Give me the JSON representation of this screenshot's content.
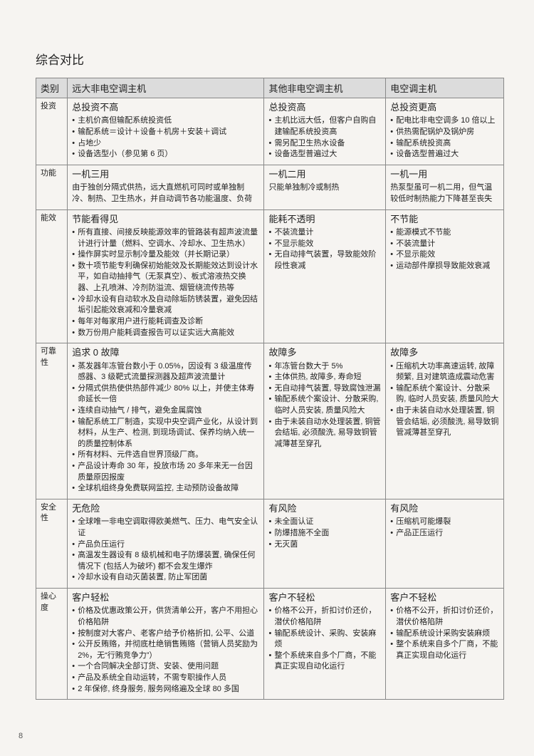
{
  "page_number": "8",
  "title": "综合对比",
  "header": {
    "col_cat": "类别",
    "col_main": "远大非电空调主机",
    "col_other": "其他非电空调主机",
    "col_elec": "电空调主机"
  },
  "rows": {
    "invest": {
      "cat": "投资",
      "main_lead": "总投资不高",
      "main_bullets": [
        "主机价高但输配系统投资低",
        "输配系统＝设计＋设备＋机房＋安装＋调试",
        "占地少",
        "设备选型小（参见第 6 页）"
      ],
      "other_lead": "总投资高",
      "other_bullets": [
        "主机比远大低，但客户自购自建输配系统投资高",
        "需另配卫生热水设备",
        "设备选型普遍过大"
      ],
      "elec_lead": "总投资更高",
      "elec_bullets": [
        "配电比非电空调多 10 倍以上",
        "供热需配锅炉及锅炉房",
        "输配系统投资高",
        "设备选型普遍过大"
      ]
    },
    "func": {
      "cat": "功能",
      "main_lead": "一机三用",
      "main_sub": "由于独创分隔式供热，远大直燃机可同时或单独制冷、制热、卫生热水，并自动调节各功能温度、负荷",
      "other_lead": "一机二用",
      "other_sub": "只能单独制冷或制热",
      "elec_lead": "一机一用",
      "elec_sub": "热泵型虽可一机二用，但气温较低时制热能力下降甚至丧失"
    },
    "energy": {
      "cat": "能效",
      "main_lead": "节能看得见",
      "main_bullets": [
        "所有直接、间接反映能源效率的管路装有超声波流量计进行计量（燃料、空调水、冷却水、卫生热水）",
        "操作屏实时显示制冷量及能效（并长期记录）",
        "数十项节能专利确保初始能效及长期能效达到设计水平，如自动抽排气（无泵真空）、板式溶液热交换器、上孔喷淋、冷剂防溢流、烟管绕流传热等",
        "冷却水设有自动软水及自动除垢防锈装置，避免因结垢引起能效衰减和冷量衰减",
        "每年对每家用户进行能耗调查及诊断",
        "数万份用户能耗调查报告可以证实远大高能效"
      ],
      "other_lead": "能耗不透明",
      "other_bullets": [
        "不装流量计",
        "不显示能效",
        "无自动排气装置，导致能效阶段性衰减"
      ],
      "elec_lead": "不节能",
      "elec_bullets": [
        "能源模式不节能",
        "不装流量计",
        "不显示能效",
        "运动部件摩损导致能效衰减"
      ]
    },
    "reliab": {
      "cat": "可靠性",
      "main_lead": "追求 0 故障",
      "main_bullets": [
        "蒸发器年冻管台数小于 0.05%，因设有 3 级温度传感器、3 级靶式流量探测器及超声波流量计",
        "分隔式供热使供热部件减少 80% 以上，并使主体寿命延长一倍",
        "连续自动抽气 / 排气，避免金属腐蚀",
        "输配系统工厂制造，实现中央空调产业化，从设计到材料，从生产、检测, 到现场调试、保养均纳入统一的质量控制体系",
        "所有材料、元件选自世界顶级厂商。",
        "产品设计寿命 30 年，投放市场 20 多年来无一台因质量原因报废",
        "全球机组终身免费联网监控, 主动预防设备故障"
      ],
      "other_lead": "故障多",
      "other_bullets": [
        "年冻管台数大于 5%",
        "主体供热, 故障多, 寿命短",
        "无自动排气装置, 导致腐蚀泄漏",
        "输配系统个案设计、分散采购, 临时人员安装, 质量风险大",
        "由于未装自动水处理装置, 铜管会结垢, 必须酸洗, 易导致铜管减薄甚至穿孔"
      ],
      "elec_lead": "故障多",
      "elec_bullets": [
        "压缩机大功率高速运转, 故障频繁, 且对建筑造成震动危害",
        "输配系统个案设计、分散采购, 临时人员安装, 质量风险大",
        "由于未装自动水处理装置, 铜管会结垢, 必须酸洗, 易导致铜管减薄甚至穿孔"
      ]
    },
    "safety": {
      "cat": "安全性",
      "main_lead": "无危险",
      "main_bullets": [
        "全球唯一非电空调取得欧美燃气、压力、电气安全认证",
        "产品负压运行",
        "高温发生器设有 8 级机械和电子防爆装置, 确保任何情况下 (包括人为破坏) 都不会发生爆炸",
        "冷却水设有自动灭菌装置, 防止军团菌"
      ],
      "other_lead": "有风险",
      "other_bullets": [
        "未全面认证",
        "防爆措施不全面",
        "无灭菌"
      ],
      "elec_lead": "有风险",
      "elec_bullets": [
        "压缩机可能爆裂",
        "产品正压运行"
      ]
    },
    "care": {
      "cat": "操心度",
      "main_lead": "客户轻松",
      "main_bullets": [
        "价格及优惠政策公开，供货清单公开，客户不用担心价格陷阱",
        "按制度对大客户、老客户给予价格折扣, 公平、公道",
        "公开反贿赂，并彻底杜绝销售贿赂（营销人员奖励为 2%，无“行贿竞争力”）",
        "一个合同解决全部订货、安装、使用问题",
        "产品及系统全自动运转，不需专职操作人员",
        "2 年保修, 终身服务, 服务网络遍及全球 80 多国"
      ],
      "other_lead": "客户不轻松",
      "other_bullets": [
        "价格不公开，折扣讨价还价，潜伏价格陷阱",
        "输配系统设计、采购、安装麻烦",
        "整个系统来自多个厂商，不能真正实现自动化运行"
      ],
      "elec_lead": "客户不轻松",
      "elec_bullets": [
        "价格不公开，折扣讨价还价，潜伏价格陷阱",
        "输配系统设计采购安装麻烦",
        "整个系统来自多个厂商，不能真正实现自动化运行"
      ]
    }
  }
}
